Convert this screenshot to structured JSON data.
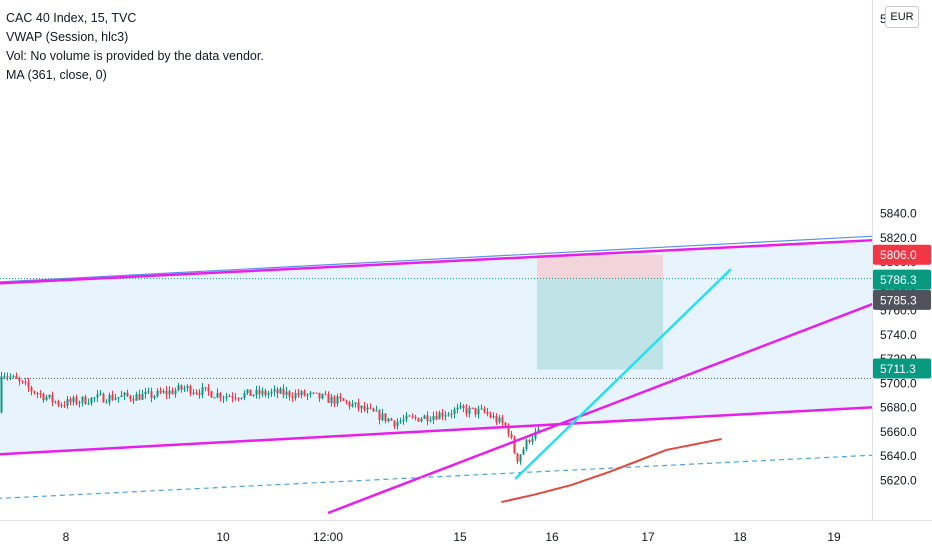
{
  "legend": {
    "symbol": "CAC 40 Index, 15, TVC",
    "vwap": "VWAP (Session, hlc3)",
    "vol": "Vol: No volume is provided by the data vendor.",
    "ma": "MA (361, close, 0)"
  },
  "currency": "EUR",
  "price_axis_top_label": "5",
  "chart_data": {
    "type": "candlestick",
    "symbol": "CAC 40 Index",
    "interval": "15",
    "source": "TVC",
    "currency": "EUR",
    "ylim": [
      5600,
      5862
    ],
    "y_ticks": [
      5620,
      5640,
      5660,
      5680,
      5700,
      5720,
      5740,
      5760,
      5780,
      5800,
      5820,
      5840
    ],
    "y_tick_labels": [
      "5620.0",
      "5640.0",
      "5660.0",
      "5680.0",
      "5700.0",
      "5720.0",
      "5740.0",
      "5760.0",
      "5780.0",
      "5800.0",
      "5820.0",
      "5840.0"
    ],
    "x_tick_labels": [
      "8",
      "10",
      "12:00",
      "15",
      "16",
      "17",
      "18",
      "19"
    ],
    "price_labels": [
      {
        "value": "5806.0",
        "price": 5806.0,
        "color": "#f23645"
      },
      {
        "value": "5786.3",
        "price": 5786.3,
        "color": "#089981"
      },
      {
        "value": "5785.3",
        "price": 5785.3,
        "color": "#50535e"
      },
      {
        "value": "5711.3",
        "price": 5711.3,
        "color": "#089981"
      }
    ],
    "position_tool": {
      "entry": 5785.3,
      "stop": 5806.0,
      "target": 5711.3
    },
    "horizontal_dotted_levels": [
      5786.3,
      5704.0
    ],
    "colors": {
      "up": "#089981",
      "down": "#f23645",
      "trendline": "#e91eeb",
      "fast_line": "#26e0f0",
      "ma_line": "#e0483e",
      "band_fill": "#e4f2fd",
      "profit_zone": "#b3dde0",
      "loss_zone": "#f5c9cd"
    }
  }
}
